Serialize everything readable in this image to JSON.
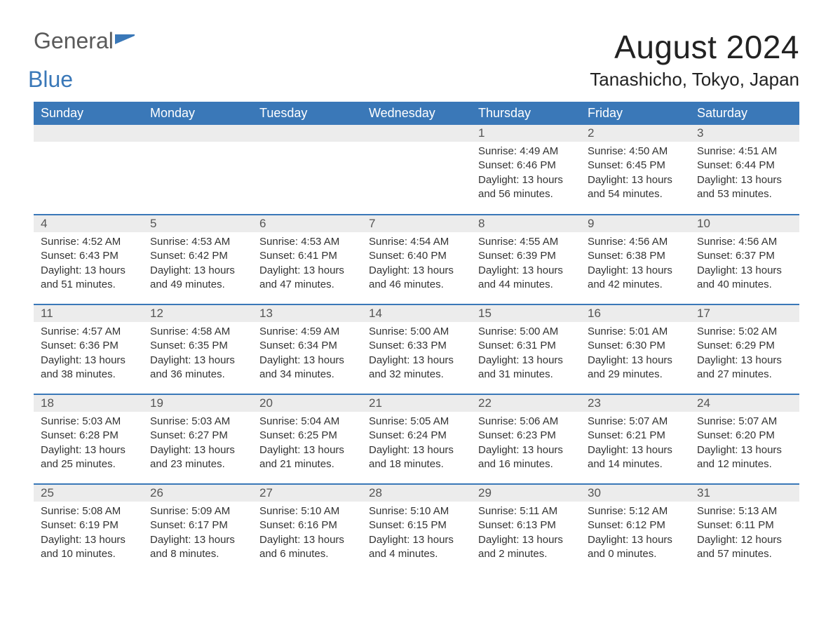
{
  "logo": {
    "part1": "General",
    "part2": "Blue"
  },
  "header": {
    "title": "August 2024",
    "location": "Tanashicho, Tokyo, Japan"
  },
  "colors": {
    "header_bg": "#3a78b8",
    "header_text": "#ffffff",
    "daynum_bg": "#ececec",
    "row_border": "#3a78b8",
    "logo_gray": "#5a5a5a",
    "logo_blue": "#3a78b8"
  },
  "weekdays": [
    "Sunday",
    "Monday",
    "Tuesday",
    "Wednesday",
    "Thursday",
    "Friday",
    "Saturday"
  ],
  "weeks": [
    [
      null,
      null,
      null,
      null,
      {
        "n": "1",
        "sunrise": "Sunrise: 4:49 AM",
        "sunset": "Sunset: 6:46 PM",
        "daylight": "Daylight: 13 hours and 56 minutes."
      },
      {
        "n": "2",
        "sunrise": "Sunrise: 4:50 AM",
        "sunset": "Sunset: 6:45 PM",
        "daylight": "Daylight: 13 hours and 54 minutes."
      },
      {
        "n": "3",
        "sunrise": "Sunrise: 4:51 AM",
        "sunset": "Sunset: 6:44 PM",
        "daylight": "Daylight: 13 hours and 53 minutes."
      }
    ],
    [
      {
        "n": "4",
        "sunrise": "Sunrise: 4:52 AM",
        "sunset": "Sunset: 6:43 PM",
        "daylight": "Daylight: 13 hours and 51 minutes."
      },
      {
        "n": "5",
        "sunrise": "Sunrise: 4:53 AM",
        "sunset": "Sunset: 6:42 PM",
        "daylight": "Daylight: 13 hours and 49 minutes."
      },
      {
        "n": "6",
        "sunrise": "Sunrise: 4:53 AM",
        "sunset": "Sunset: 6:41 PM",
        "daylight": "Daylight: 13 hours and 47 minutes."
      },
      {
        "n": "7",
        "sunrise": "Sunrise: 4:54 AM",
        "sunset": "Sunset: 6:40 PM",
        "daylight": "Daylight: 13 hours and 46 minutes."
      },
      {
        "n": "8",
        "sunrise": "Sunrise: 4:55 AM",
        "sunset": "Sunset: 6:39 PM",
        "daylight": "Daylight: 13 hours and 44 minutes."
      },
      {
        "n": "9",
        "sunrise": "Sunrise: 4:56 AM",
        "sunset": "Sunset: 6:38 PM",
        "daylight": "Daylight: 13 hours and 42 minutes."
      },
      {
        "n": "10",
        "sunrise": "Sunrise: 4:56 AM",
        "sunset": "Sunset: 6:37 PM",
        "daylight": "Daylight: 13 hours and 40 minutes."
      }
    ],
    [
      {
        "n": "11",
        "sunrise": "Sunrise: 4:57 AM",
        "sunset": "Sunset: 6:36 PM",
        "daylight": "Daylight: 13 hours and 38 minutes."
      },
      {
        "n": "12",
        "sunrise": "Sunrise: 4:58 AM",
        "sunset": "Sunset: 6:35 PM",
        "daylight": "Daylight: 13 hours and 36 minutes."
      },
      {
        "n": "13",
        "sunrise": "Sunrise: 4:59 AM",
        "sunset": "Sunset: 6:34 PM",
        "daylight": "Daylight: 13 hours and 34 minutes."
      },
      {
        "n": "14",
        "sunrise": "Sunrise: 5:00 AM",
        "sunset": "Sunset: 6:33 PM",
        "daylight": "Daylight: 13 hours and 32 minutes."
      },
      {
        "n": "15",
        "sunrise": "Sunrise: 5:00 AM",
        "sunset": "Sunset: 6:31 PM",
        "daylight": "Daylight: 13 hours and 31 minutes."
      },
      {
        "n": "16",
        "sunrise": "Sunrise: 5:01 AM",
        "sunset": "Sunset: 6:30 PM",
        "daylight": "Daylight: 13 hours and 29 minutes."
      },
      {
        "n": "17",
        "sunrise": "Sunrise: 5:02 AM",
        "sunset": "Sunset: 6:29 PM",
        "daylight": "Daylight: 13 hours and 27 minutes."
      }
    ],
    [
      {
        "n": "18",
        "sunrise": "Sunrise: 5:03 AM",
        "sunset": "Sunset: 6:28 PM",
        "daylight": "Daylight: 13 hours and 25 minutes."
      },
      {
        "n": "19",
        "sunrise": "Sunrise: 5:03 AM",
        "sunset": "Sunset: 6:27 PM",
        "daylight": "Daylight: 13 hours and 23 minutes."
      },
      {
        "n": "20",
        "sunrise": "Sunrise: 5:04 AM",
        "sunset": "Sunset: 6:25 PM",
        "daylight": "Daylight: 13 hours and 21 minutes."
      },
      {
        "n": "21",
        "sunrise": "Sunrise: 5:05 AM",
        "sunset": "Sunset: 6:24 PM",
        "daylight": "Daylight: 13 hours and 18 minutes."
      },
      {
        "n": "22",
        "sunrise": "Sunrise: 5:06 AM",
        "sunset": "Sunset: 6:23 PM",
        "daylight": "Daylight: 13 hours and 16 minutes."
      },
      {
        "n": "23",
        "sunrise": "Sunrise: 5:07 AM",
        "sunset": "Sunset: 6:21 PM",
        "daylight": "Daylight: 13 hours and 14 minutes."
      },
      {
        "n": "24",
        "sunrise": "Sunrise: 5:07 AM",
        "sunset": "Sunset: 6:20 PM",
        "daylight": "Daylight: 13 hours and 12 minutes."
      }
    ],
    [
      {
        "n": "25",
        "sunrise": "Sunrise: 5:08 AM",
        "sunset": "Sunset: 6:19 PM",
        "daylight": "Daylight: 13 hours and 10 minutes."
      },
      {
        "n": "26",
        "sunrise": "Sunrise: 5:09 AM",
        "sunset": "Sunset: 6:17 PM",
        "daylight": "Daylight: 13 hours and 8 minutes."
      },
      {
        "n": "27",
        "sunrise": "Sunrise: 5:10 AM",
        "sunset": "Sunset: 6:16 PM",
        "daylight": "Daylight: 13 hours and 6 minutes."
      },
      {
        "n": "28",
        "sunrise": "Sunrise: 5:10 AM",
        "sunset": "Sunset: 6:15 PM",
        "daylight": "Daylight: 13 hours and 4 minutes."
      },
      {
        "n": "29",
        "sunrise": "Sunrise: 5:11 AM",
        "sunset": "Sunset: 6:13 PM",
        "daylight": "Daylight: 13 hours and 2 minutes."
      },
      {
        "n": "30",
        "sunrise": "Sunrise: 5:12 AM",
        "sunset": "Sunset: 6:12 PM",
        "daylight": "Daylight: 13 hours and 0 minutes."
      },
      {
        "n": "31",
        "sunrise": "Sunrise: 5:13 AM",
        "sunset": "Sunset: 6:11 PM",
        "daylight": "Daylight: 12 hours and 57 minutes."
      }
    ]
  ]
}
